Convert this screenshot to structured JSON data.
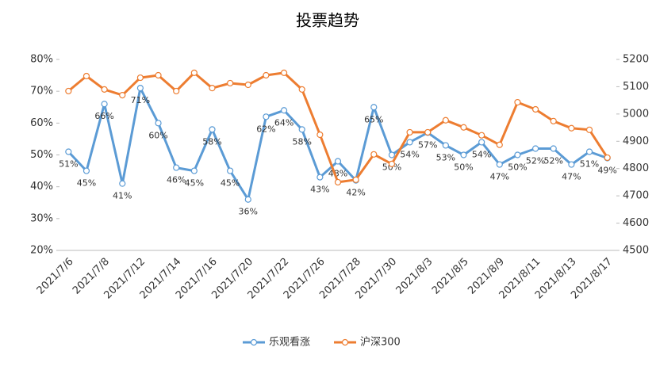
{
  "chart_data": {
    "type": "line",
    "title": "投票趋势",
    "categories": [
      "2021/7/6",
      null,
      "2021/7/8",
      null,
      "2021/7/12",
      null,
      "2021/7/14",
      null,
      "2021/7/16",
      null,
      "2021/7/20",
      null,
      "2021/7/22",
      null,
      "2021/7/26",
      null,
      "2021/7/28",
      null,
      "2021/7/30",
      null,
      "2021/8/3",
      null,
      "2021/8/5",
      null,
      "2021/8/9",
      null,
      "2021/8/11",
      null,
      "2021/8/13",
      null,
      "2021/8/17"
    ],
    "series": [
      {
        "name": "乐观看涨",
        "color": "#5b9bd5",
        "axis": "y",
        "values": [
          51,
          45,
          66,
          41,
          71,
          60,
          46,
          45,
          58,
          45,
          36,
          62,
          64,
          58,
          43,
          48,
          42,
          65,
          50,
          54,
          57,
          53,
          50,
          54,
          47,
          50,
          52,
          52,
          47,
          51,
          49
        ],
        "value_labels": [
          "51%",
          "45%",
          "66%",
          "41%",
          "71%",
          "60%",
          "46%",
          "45%",
          "58%",
          "45%",
          "36%",
          "62%",
          "64%",
          "58%",
          "43%",
          "48%",
          "42%",
          "65%",
          "50%",
          "54%",
          "57%",
          "53%",
          "50%",
          "54%",
          "47%",
          "50%",
          "52%",
          "52%",
          "47%",
          "51%",
          "49%"
        ]
      },
      {
        "name": "沪深300",
        "color": "#ed7d31",
        "axis": "y2",
        "values": [
          5084,
          5139,
          5090,
          5069,
          5133,
          5142,
          5084,
          5151,
          5095,
          5113,
          5107,
          5142,
          5151,
          5090,
          4924,
          4750,
          4759,
          4852,
          4817,
          4933,
          4933,
          4977,
          4951,
          4922,
          4887,
          5043,
          5017,
          4974,
          4948,
          4942,
          4840
        ]
      }
    ],
    "ylim": [
      20,
      80
    ],
    "yticks": [
      {
        "value": 20,
        "label": "20%"
      },
      {
        "value": 30,
        "label": "30%"
      },
      {
        "value": 40,
        "label": "40%"
      },
      {
        "value": 50,
        "label": "50%"
      },
      {
        "value": 60,
        "label": "60%"
      },
      {
        "value": 70,
        "label": "70%"
      },
      {
        "value": 80,
        "label": "80%"
      }
    ],
    "y2lim": [
      4500,
      5200
    ],
    "y2ticks": [
      4500,
      4600,
      4700,
      4800,
      4900,
      5000,
      5100,
      5200
    ],
    "legend": "bottom"
  }
}
